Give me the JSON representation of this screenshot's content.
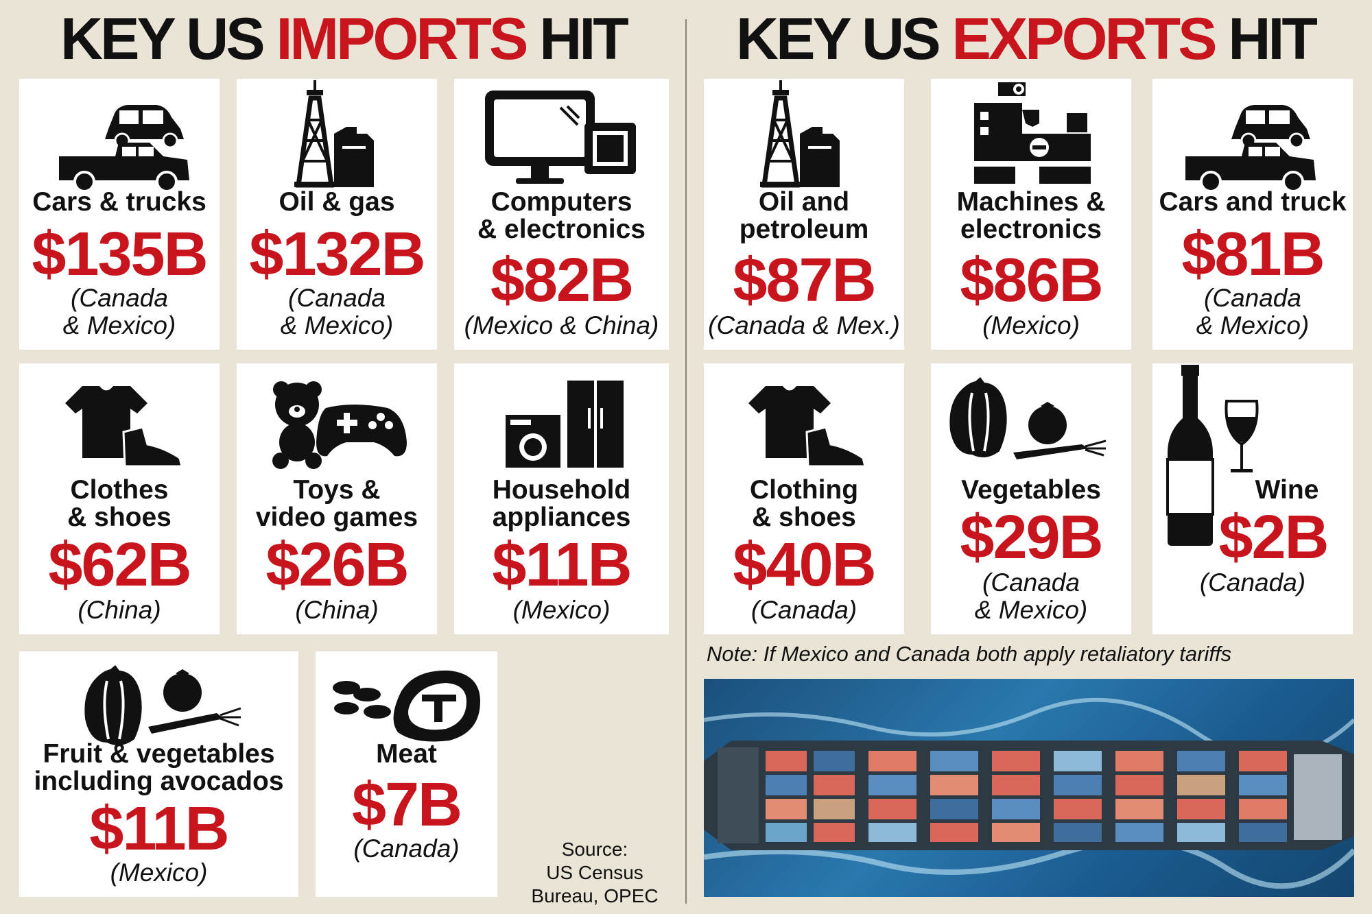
{
  "imports_header": {
    "prefix": "KEY US ",
    "highlight": "IMPORTS",
    "suffix": " HIT"
  },
  "exports_header": {
    "prefix": "KEY US ",
    "highlight": "EXPORTS",
    "suffix": " HIT"
  },
  "imports": [
    {
      "label": "Cars & trucks",
      "value": "$135B",
      "countries": "(Canada\n& Mexico)",
      "icon": "car-truck-icon"
    },
    {
      "label": "Oil & gas",
      "value": "$132B",
      "countries": "(Canada\n& Mexico)",
      "icon": "oil-derrick-icon"
    },
    {
      "label": "Computers\n& electronics",
      "value": "$82B",
      "countries": "(Mexico & China)",
      "icon": "computer-icon"
    },
    {
      "label": "Clothes\n& shoes",
      "value": "$62B",
      "countries": "(China)",
      "icon": "tshirt-shoe-icon"
    },
    {
      "label": "Toys &\nvideo games",
      "value": "$26B",
      "countries": "(China)",
      "icon": "teddy-gamepad-icon"
    },
    {
      "label": "Household\nappliances",
      "value": "$11B",
      "countries": "(Mexico)",
      "icon": "appliances-icon"
    },
    {
      "label": "Fruit & vegetables\nincluding avocados",
      "value": "$11B",
      "countries": "(Mexico)",
      "icon": "vegetables-icon"
    },
    {
      "label": "Meat",
      "value": "$7B",
      "countries": "(Canada)",
      "icon": "meat-icon"
    }
  ],
  "exports": [
    {
      "label": "Oil and\npetroleum",
      "value": "$87B",
      "countries": "(Canada & Mex.)",
      "icon": "oil-derrick-icon"
    },
    {
      "label": "Machines &\nelectronics",
      "value": "$86B",
      "countries": "(Mexico)",
      "icon": "machine-icon"
    },
    {
      "label": "Cars and truck",
      "value": "$81B",
      "countries": "(Canada\n& Mexico)",
      "icon": "car-truck-icon"
    },
    {
      "label": "Clothing\n& shoes",
      "value": "$40B",
      "countries": "(Canada)",
      "icon": "tshirt-shoe-icon"
    },
    {
      "label": "Vegetables",
      "value": "$29B",
      "countries": "(Canada\n& Mexico)",
      "icon": "vegetables-icon"
    },
    {
      "label": "Wine",
      "value": "$2B",
      "countries": "(Canada)",
      "icon": "wine-icon"
    }
  ],
  "note": "Note: If Mexico and Canada both apply retaliatory tariffs",
  "source": "Source:\nUS Census\nBureau, OPEC",
  "colors": {
    "accent_red": "#c8141c",
    "background": "#e9e4d6",
    "card": "#ffffff"
  }
}
